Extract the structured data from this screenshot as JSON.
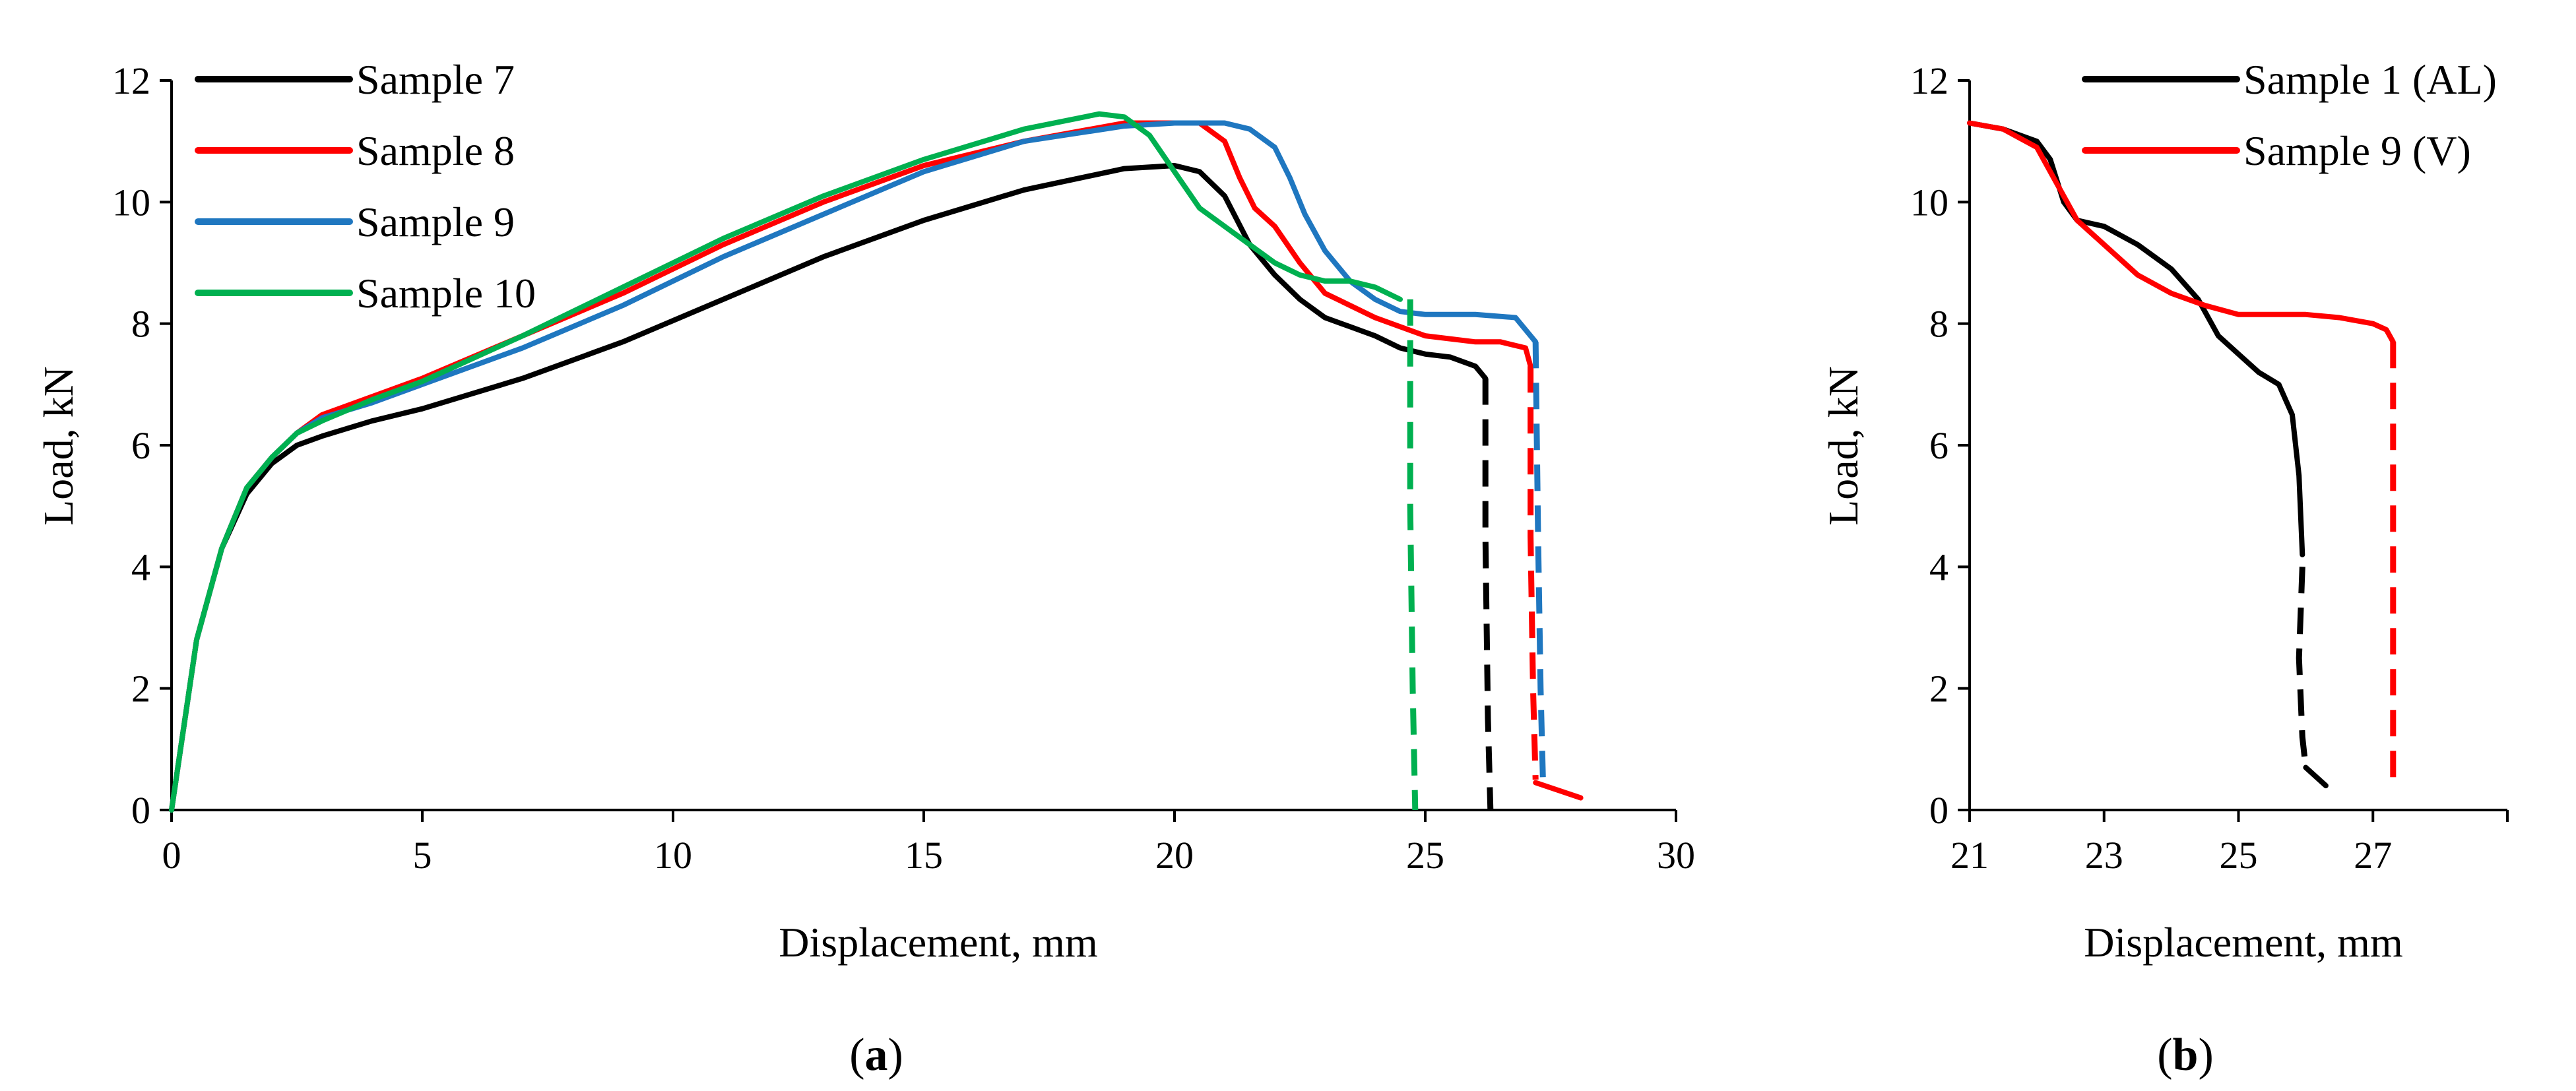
{
  "chart_data": [
    {
      "type": "line",
      "panel_label": "a",
      "xlabel": "Displacement, mm",
      "ylabel": "Load, kN",
      "xlim": [
        0,
        30
      ],
      "ylim": [
        0,
        12
      ],
      "xticks": [
        "0",
        "5",
        "10",
        "15",
        "20",
        "25",
        "30"
      ],
      "yticks": [
        "0",
        "2",
        "4",
        "6",
        "8",
        "10",
        "12"
      ],
      "legend_position": "top-left",
      "series": [
        {
          "name": "Sample 7",
          "color": "#000000",
          "x": [
            0,
            0.5,
            1,
            1.5,
            2,
            2.5,
            3,
            4,
            5,
            7,
            9,
            11,
            13,
            15,
            17,
            19,
            20,
            20.5,
            21,
            21.5,
            22,
            22.5,
            23,
            23.5,
            24,
            24.5,
            25,
            25.5,
            26,
            26.2
          ],
          "y": [
            0,
            2.8,
            4.3,
            5.2,
            5.7,
            6.0,
            6.15,
            6.4,
            6.6,
            7.1,
            7.7,
            8.4,
            9.1,
            9.7,
            10.2,
            10.55,
            10.6,
            10.5,
            10.1,
            9.3,
            8.8,
            8.4,
            8.1,
            7.95,
            7.8,
            7.6,
            7.5,
            7.45,
            7.3,
            7.1
          ],
          "dashed_x": [
            26.2,
            26.2,
            26.25,
            26.3
          ],
          "dashed_y": [
            7.1,
            4.5,
            1.5,
            0
          ]
        },
        {
          "name": "Sample 8",
          "color": "#ff0000",
          "x": [
            0,
            0.5,
            1,
            1.5,
            2,
            2.5,
            3,
            4,
            5,
            7,
            9,
            11,
            13,
            15,
            17,
            19,
            20,
            20.5,
            21,
            21.3,
            21.6,
            22,
            22.5,
            23,
            24,
            25,
            26,
            26.5,
            27,
            27.1
          ],
          "y": [
            0,
            2.8,
            4.3,
            5.3,
            5.8,
            6.2,
            6.5,
            6.8,
            7.1,
            7.8,
            8.5,
            9.3,
            10.0,
            10.6,
            11.0,
            11.3,
            11.3,
            11.3,
            11.0,
            10.4,
            9.9,
            9.6,
            9.0,
            8.5,
            8.1,
            7.8,
            7.7,
            7.7,
            7.6,
            7.3
          ],
          "dashed_x": [
            27.1,
            27.1,
            27.15,
            27.2
          ],
          "dashed_y": [
            7.3,
            4.5,
            2.0,
            0.5
          ],
          "tail_x": [
            27.2,
            28.1
          ],
          "tail_y": [
            0.45,
            0.2
          ]
        },
        {
          "name": "Sample 9",
          "color": "#1f77c0",
          "x": [
            0,
            0.5,
            1,
            1.5,
            2,
            2.5,
            3,
            4,
            5,
            7,
            9,
            11,
            13,
            15,
            17,
            19,
            20,
            21,
            21.5,
            22,
            22.3,
            22.6,
            23,
            23.5,
            24,
            24.5,
            25,
            26,
            26.8,
            27.2
          ],
          "y": [
            0,
            2.8,
            4.3,
            5.3,
            5.8,
            6.2,
            6.45,
            6.7,
            7.0,
            7.6,
            8.3,
            9.1,
            9.8,
            10.5,
            11.0,
            11.25,
            11.3,
            11.3,
            11.2,
            10.9,
            10.4,
            9.8,
            9.2,
            8.7,
            8.4,
            8.2,
            8.15,
            8.15,
            8.1,
            7.7
          ],
          "dashed_x": [
            27.2,
            27.25,
            27.3,
            27.35
          ],
          "dashed_y": [
            7.7,
            4.5,
            2.0,
            0.4
          ]
        },
        {
          "name": "Sample 10",
          "color": "#00b050",
          "x": [
            0,
            0.5,
            1,
            1.5,
            2,
            2.5,
            3,
            4,
            5,
            7,
            9,
            11,
            13,
            15,
            17,
            18.5,
            19,
            19.5,
            20,
            20.5,
            21,
            21.5,
            22,
            22.5,
            23,
            23.5,
            24,
            24.5
          ],
          "y": [
            0,
            2.8,
            4.3,
            5.3,
            5.8,
            6.2,
            6.4,
            6.75,
            7.05,
            7.8,
            8.6,
            9.4,
            10.1,
            10.7,
            11.2,
            11.45,
            11.4,
            11.1,
            10.5,
            9.9,
            9.6,
            9.3,
            9.0,
            8.8,
            8.7,
            8.7,
            8.6,
            8.4
          ],
          "dashed_x": [
            24.7,
            24.7,
            24.75,
            24.8
          ],
          "dashed_y": [
            8.4,
            5.0,
            2.0,
            0
          ]
        }
      ]
    },
    {
      "type": "line",
      "panel_label": "b",
      "xlabel": "Displacement, mm",
      "ylabel": "Load, kN",
      "xlim": [
        21,
        29
      ],
      "ylim": [
        0,
        12
      ],
      "xticks": [
        "21",
        "23",
        "25",
        "27"
      ],
      "xtick_values": [
        21,
        23,
        25,
        27
      ],
      "yticks": [
        "0",
        "2",
        "4",
        "6",
        "8",
        "10",
        "12"
      ],
      "legend_position": "top-right",
      "series": [
        {
          "name": "Sample 1 (AL)",
          "color": "#000000",
          "x": [
            21,
            21.5,
            22,
            22.2,
            22.4,
            22.6,
            23,
            23.5,
            24,
            24.4,
            24.7,
            25,
            25.3,
            25.6,
            25.8,
            25.9,
            25.95
          ],
          "y": [
            11.3,
            11.2,
            11.0,
            10.7,
            10.0,
            9.7,
            9.6,
            9.3,
            8.9,
            8.4,
            7.8,
            7.5,
            7.2,
            7.0,
            6.5,
            5.5,
            4.2
          ],
          "dashed_x": [
            25.95,
            25.9,
            25.95,
            26.0
          ],
          "dashed_y": [
            4.0,
            2.5,
            1.2,
            0.7
          ],
          "tail_x": [
            26.0,
            26.3
          ],
          "tail_y": [
            0.7,
            0.4
          ]
        },
        {
          "name": "Sample 9 (V)",
          "color": "#ff0000",
          "x": [
            21,
            21.5,
            22,
            22.3,
            22.6,
            23,
            23.5,
            24,
            24.5,
            25,
            25.5,
            26,
            26.5,
            27,
            27.2,
            27.3
          ],
          "y": [
            11.3,
            11.2,
            10.9,
            10.3,
            9.7,
            9.3,
            8.8,
            8.5,
            8.3,
            8.15,
            8.15,
            8.15,
            8.1,
            8.0,
            7.9,
            7.7
          ],
          "dashed_x": [
            27.3,
            27.3,
            27.3
          ],
          "dashed_y": [
            7.7,
            4.0,
            0.3
          ]
        }
      ]
    }
  ]
}
